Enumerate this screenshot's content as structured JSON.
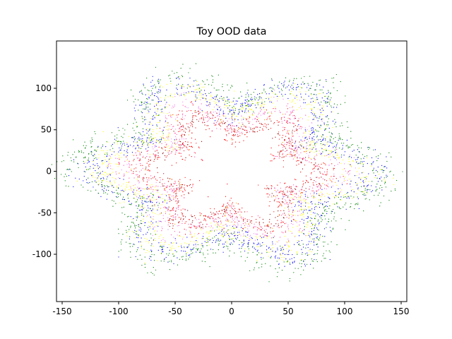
{
  "chart_data": {
    "type": "scatter",
    "title": "Toy OOD data",
    "xlabel": "",
    "ylabel": "",
    "xlim": [
      -155,
      155
    ],
    "ylim": [
      -157,
      157
    ],
    "xticks": [
      -150,
      -100,
      -50,
      0,
      50,
      100,
      150
    ],
    "yticks": [
      -100,
      -50,
      0,
      50,
      100
    ],
    "xtick_labels": [
      "-150",
      "-100",
      "-50",
      "0",
      "50",
      "100",
      "150"
    ],
    "ytick_labels": [
      "-100",
      "-50",
      "0",
      "50",
      "100"
    ],
    "grid": false,
    "legend": "none",
    "series": [
      {
        "color": "#ff0000",
        "ring_radius": 60,
        "spread": 9,
        "petals": 6,
        "amplitude": 14,
        "phase": 0.35,
        "count": 700
      },
      {
        "color": "#8b0000",
        "ring_radius": 60,
        "spread": 6,
        "petals": 6,
        "amplitude": 10,
        "phase": 0.55,
        "count": 300
      },
      {
        "color": "#ff4da6",
        "ring_radius": 66,
        "spread": 8,
        "petals": 6,
        "amplitude": 14,
        "phase": 0.2,
        "count": 450
      },
      {
        "color": "#ffa500",
        "ring_radius": 63,
        "spread": 7,
        "petals": 6,
        "amplitude": 12,
        "phase": 0.5,
        "count": 60
      },
      {
        "color": "#ee82ee",
        "ring_radius": 76,
        "spread": 8,
        "petals": 6,
        "amplitude": 15,
        "phase": 0.3,
        "count": 450
      },
      {
        "color": "#ffff00",
        "ring_radius": 88,
        "spread": 9,
        "petals": 6,
        "amplitude": 17,
        "phase": 0.45,
        "count": 900
      },
      {
        "color": "#0000ff",
        "ring_radius": 94,
        "spread": 9,
        "petals": 6,
        "amplitude": 18,
        "phase": 0.15,
        "count": 1000
      },
      {
        "color": "#008000",
        "ring_radius": 104,
        "spread": 10,
        "petals": 6,
        "amplitude": 18,
        "phase": 0.4,
        "count": 1000
      }
    ]
  }
}
